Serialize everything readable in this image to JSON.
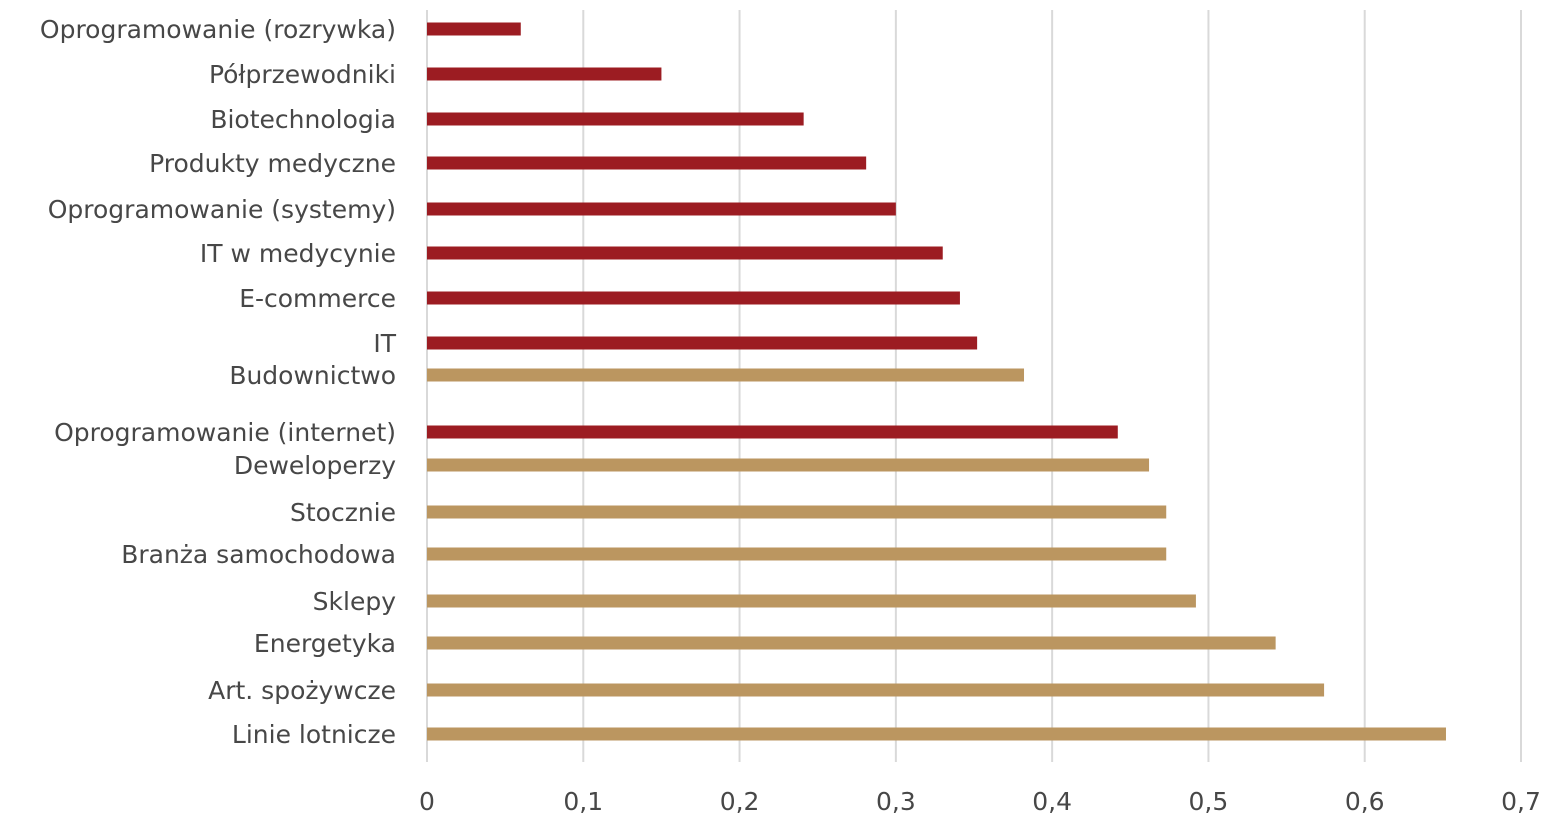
{
  "chart_data": {
    "type": "bar",
    "orientation": "horizontal",
    "title": "",
    "xlabel": "",
    "ylabel": "",
    "xlim": [
      0,
      0.7
    ],
    "grid": true,
    "x_ticks": [
      "0",
      "0,1",
      "0,2",
      "0,3",
      "0,4",
      "0,5",
      "0,6",
      "0,7"
    ],
    "colors": {
      "group_a": "#9c1c22",
      "group_b": "#bb9660"
    },
    "categories": [
      {
        "label": "Oprogramowanie (rozrywka)",
        "value": 0.06,
        "group": "group_a"
      },
      {
        "label": "Półprzewodniki",
        "value": 0.15,
        "group": "group_a"
      },
      {
        "label": "Biotechnologia",
        "value": 0.241,
        "group": "group_a"
      },
      {
        "label": "Produkty medyczne",
        "value": 0.281,
        "group": "group_a"
      },
      {
        "label": "Oprogramowanie (systemy)",
        "value": 0.3,
        "group": "group_a"
      },
      {
        "label": "IT w medycynie",
        "value": 0.33,
        "group": "group_a"
      },
      {
        "label": "E-commerce",
        "value": 0.341,
        "group": "group_a"
      },
      {
        "label": "IT",
        "value": 0.352,
        "group": "group_a"
      },
      {
        "label": "Budownictwo",
        "value": 0.382,
        "group": "group_b"
      },
      {
        "label": "Oprogramowanie (internet)",
        "value": 0.442,
        "group": "group_a"
      },
      {
        "label": "Deweloperzy",
        "value": 0.462,
        "group": "group_b"
      },
      {
        "label": "Stocznie",
        "value": 0.473,
        "group": "group_b"
      },
      {
        "label": "Branża samochodowa",
        "value": 0.473,
        "group": "group_b"
      },
      {
        "label": "Sklepy",
        "value": 0.492,
        "group": "group_b"
      },
      {
        "label": "Energetyka",
        "value": 0.543,
        "group": "group_b"
      },
      {
        "label": "Art. spożywcze",
        "value": 0.574,
        "group": "group_b"
      },
      {
        "label": "Linie lotnicze",
        "value": 0.652,
        "group": "group_b"
      }
    ]
  }
}
